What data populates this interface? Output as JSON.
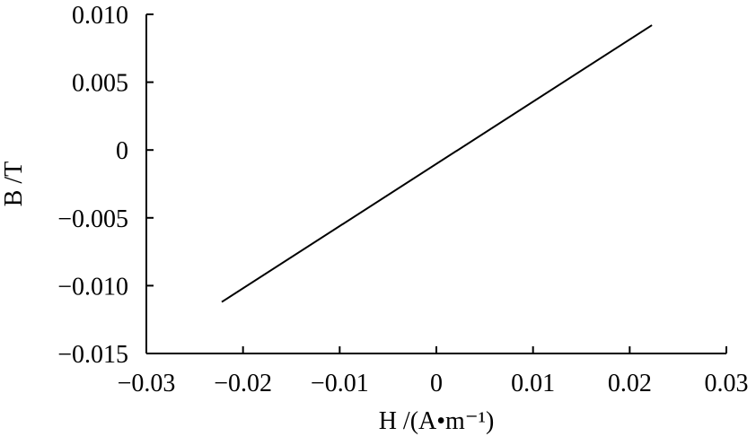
{
  "chart_data": {
    "type": "line",
    "xlabel": "H /(A•m⁻¹)",
    "ylabel": "B /T",
    "x": [
      -0.0222,
      0.0223
    ],
    "series": [
      {
        "color": "#000000",
        "values": [
          -0.0112,
          0.0092
        ]
      }
    ],
    "xlim": [
      -0.03,
      0.03
    ],
    "xticks": [
      {
        "value": -0.03,
        "label": "−0.03"
      },
      {
        "value": -0.02,
        "label": "−0.02"
      },
      {
        "value": -0.01,
        "label": "−0.01"
      },
      0,
      0.01,
      0.02,
      0.03
    ],
    "ylim": [
      -0.015,
      0.01
    ],
    "yticks": [
      {
        "value": -0.015,
        "label": "−0.015"
      },
      {
        "value": -0.01,
        "label": "−0.010"
      },
      {
        "value": -0.005,
        "label": "−0.005"
      },
      0,
      0.005,
      {
        "value": 0.01,
        "label": "0.010"
      }
    ],
    "grid": false
  }
}
